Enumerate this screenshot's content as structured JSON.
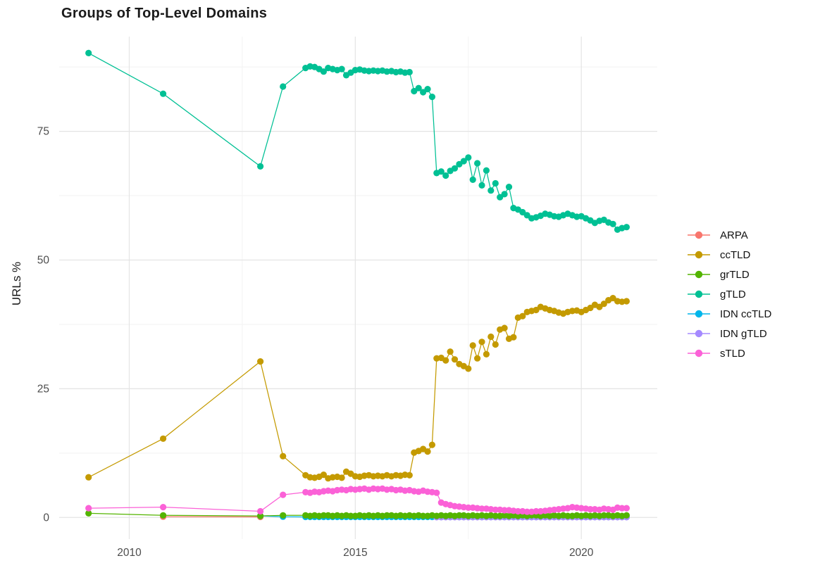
{
  "title": "Groups of Top-Level Domains",
  "y_axis": {
    "label": "URLs %"
  },
  "legend": {
    "items": [
      {
        "label": "ARPA",
        "color": "#F8766D"
      },
      {
        "label": "ccTLD",
        "color": "#C49A00"
      },
      {
        "label": "grTLD",
        "color": "#53B400"
      },
      {
        "label": "gTLD",
        "color": "#00C094"
      },
      {
        "label": "IDN ccTLD",
        "color": "#00B6EB"
      },
      {
        "label": "IDN gTLD",
        "color": "#A58AFF"
      },
      {
        "label": "sTLD",
        "color": "#FB61D7"
      }
    ]
  },
  "colors": {
    "background": "#ffffff",
    "grid_major": "#e4e4e4",
    "grid_minor": "#f2f2f2",
    "axis_text": "#4d4d4d",
    "text": "#1a1a1a"
  },
  "chart_data": {
    "type": "line",
    "title": "Groups of Top-Level Domains",
    "xlabel": "",
    "ylabel": "URLs %",
    "xlim": [
      2008.45,
      2021.68
    ],
    "ylim": [
      -4.2,
      93.4
    ],
    "x_ticks": [
      2010,
      2015,
      2020
    ],
    "x_tick_labels": [
      "2010",
      "2015",
      "2020"
    ],
    "x_minor": [
      2012.5,
      2017.5
    ],
    "y_ticks": [
      0,
      25,
      50,
      75
    ],
    "y_tick_labels": [
      "0",
      "25",
      "50",
      "75"
    ],
    "y_minor": [
      12.5,
      37.5,
      62.5,
      87.5
    ],
    "grid": true,
    "legend_position": "right",
    "series": [
      {
        "name": "ARPA",
        "color": "#F8766D",
        "points": [
          [
            2010.75,
            0.15
          ],
          [
            2012.9,
            0.1
          ]
        ]
      },
      {
        "name": "IDN ccTLD",
        "color": "#00B6EB",
        "points": [
          [
            2012.9,
            0.3
          ],
          [
            2013.4,
            0.15
          ]
        ],
        "run": {
          "x0": 2013.9,
          "dx": 0.1,
          "values": [
            0.1,
            0.1,
            0.1,
            0.1,
            0.1,
            0.1,
            0.1,
            0.1,
            0.1,
            0.1,
            0.1,
            0.1,
            0.1,
            0.1,
            0.1,
            0.1,
            0.1,
            0.1,
            0.1,
            0.1,
            0.1,
            0.1,
            0.1,
            0.1,
            0.1,
            0.1,
            0.1,
            0.1,
            0.1,
            0.1,
            0.1,
            0.1,
            0.1,
            0.1,
            0.1,
            0.1,
            0.1,
            0.1,
            0.1,
            0.1,
            0.1,
            0.1,
            0.1,
            0.1,
            0.1,
            0.1,
            0.1,
            0.1,
            0.1,
            0.1,
            0.1,
            0.1,
            0.1,
            0.1,
            0.1,
            0.1,
            0.1,
            0.1,
            0.1,
            0.1,
            0.1,
            0.1,
            0.1,
            0.1,
            0.1,
            0.1,
            0.1,
            0.1,
            0.1,
            0.1,
            0.1,
            0.1
          ]
        }
      },
      {
        "name": "IDN gTLD",
        "color": "#A58AFF",
        "points": [],
        "run": {
          "x0": 2016.8,
          "dx": 0.1,
          "values": [
            0.05,
            0.05,
            0.05,
            0.05,
            0.05,
            0.05,
            0.05,
            0.05,
            0.05,
            0.05,
            0.05,
            0.05,
            0.05,
            0.05,
            0.05,
            0.05,
            0.05,
            0.05,
            0.05,
            0.05,
            0.05,
            0.05,
            0.05,
            0.05,
            0.05,
            0.05,
            0.05,
            0.05,
            0.05,
            0.05,
            0.05,
            0.05,
            0.05,
            0.05,
            0.05,
            0.05,
            0.05,
            0.05,
            0.05,
            0.05,
            0.05,
            0.05,
            0.05
          ]
        }
      },
      {
        "name": "ccTLD",
        "color": "#C49A00",
        "points": [
          [
            2009.1,
            7.8
          ],
          [
            2010.75,
            15.3
          ],
          [
            2012.9,
            30.3
          ],
          [
            2013.4,
            11.9
          ]
        ],
        "run": {
          "x0": 2013.9,
          "dx": 0.1,
          "values": [
            8.2,
            7.8,
            7.7,
            7.9,
            8.3,
            7.6,
            7.8,
            7.9,
            7.7,
            8.9,
            8.5,
            8.0,
            7.9,
            8.1,
            8.2,
            8.0,
            8.1,
            8.0,
            8.2,
            8.0,
            8.2,
            8.1,
            8.3,
            8.2,
            12.6,
            12.9,
            13.3,
            12.8,
            14.1,
            30.9,
            31.0,
            30.5,
            32.2,
            30.7,
            29.8,
            29.4,
            28.9,
            33.4,
            30.9,
            34.1,
            31.7,
            35.1,
            33.6,
            36.5,
            36.8,
            34.7,
            35.0,
            38.8,
            39.1,
            39.9,
            40.1,
            40.3,
            40.9,
            40.6,
            40.3,
            40.1,
            39.8,
            39.6,
            39.9,
            40.1,
            40.2,
            39.9,
            40.3,
            40.7,
            41.3,
            40.9,
            41.5,
            42.2,
            42.6,
            42.0,
            41.9,
            42.0
          ]
        }
      },
      {
        "name": "gTLD",
        "color": "#00C094",
        "points": [
          [
            2009.1,
            90.2
          ],
          [
            2010.75,
            82.3
          ],
          [
            2012.9,
            68.2
          ],
          [
            2013.4,
            83.7
          ]
        ],
        "run": {
          "x0": 2013.9,
          "dx": 0.1,
          "values": [
            87.3,
            87.6,
            87.5,
            87.1,
            86.6,
            87.3,
            87.1,
            86.9,
            87.1,
            85.9,
            86.4,
            86.9,
            87.0,
            86.8,
            86.7,
            86.8,
            86.7,
            86.8,
            86.6,
            86.7,
            86.5,
            86.6,
            86.4,
            86.5,
            82.8,
            83.4,
            82.6,
            83.2,
            81.7,
            66.9,
            67.2,
            66.4,
            67.3,
            67.8,
            68.6,
            69.2,
            69.9,
            65.6,
            68.8,
            64.5,
            67.4,
            63.5,
            64.9,
            62.2,
            62.8,
            64.2,
            60.1,
            59.8,
            59.3,
            58.7,
            58.1,
            58.3,
            58.6,
            59.0,
            58.8,
            58.5,
            58.4,
            58.7,
            59.0,
            58.7,
            58.4,
            58.5,
            58.1,
            57.7,
            57.2,
            57.6,
            57.8,
            57.3,
            57.0,
            55.9,
            56.2,
            56.4
          ]
        }
      },
      {
        "name": "grTLD",
        "color": "#53B400",
        "points": [
          [
            2009.1,
            0.8
          ],
          [
            2010.75,
            0.4
          ],
          [
            2012.9,
            0.3
          ],
          [
            2013.4,
            0.4
          ]
        ],
        "run": {
          "x0": 2013.9,
          "dx": 0.1,
          "values": [
            0.4,
            0.3,
            0.4,
            0.3,
            0.4,
            0.4,
            0.3,
            0.4,
            0.3,
            0.4,
            0.3,
            0.3,
            0.4,
            0.3,
            0.4,
            0.3,
            0.4,
            0.3,
            0.4,
            0.4,
            0.3,
            0.4,
            0.3,
            0.4,
            0.3,
            0.4,
            0.3,
            0.3,
            0.4,
            0.3,
            0.4,
            0.3,
            0.4,
            0.3,
            0.4,
            0.4,
            0.3,
            0.4,
            0.3,
            0.4,
            0.3,
            0.4,
            0.3,
            0.3,
            0.4,
            0.3,
            0.4,
            0.3,
            0.4,
            0.3,
            0.4,
            0.4,
            0.3,
            0.4,
            0.3,
            0.4,
            0.3,
            0.4,
            0.3,
            0.3,
            0.4,
            0.3,
            0.4,
            0.3,
            0.4,
            0.3,
            0.4,
            0.4,
            0.3,
            0.4,
            0.3,
            0.4
          ]
        }
      },
      {
        "name": "sTLD",
        "color": "#FB61D7",
        "points": [
          [
            2009.1,
            1.8
          ],
          [
            2010.75,
            2.0
          ],
          [
            2012.9,
            1.2
          ],
          [
            2013.4,
            4.4
          ]
        ],
        "run": {
          "x0": 2013.9,
          "dx": 0.1,
          "values": [
            4.9,
            4.8,
            5.0,
            4.9,
            5.1,
            5.2,
            5.1,
            5.3,
            5.4,
            5.3,
            5.5,
            5.4,
            5.5,
            5.6,
            5.4,
            5.6,
            5.5,
            5.6,
            5.4,
            5.5,
            5.3,
            5.4,
            5.2,
            5.3,
            5.1,
            5.0,
            5.2,
            5.0,
            4.9,
            4.8,
            2.9,
            2.6,
            2.4,
            2.2,
            2.1,
            2.0,
            1.9,
            1.9,
            1.8,
            1.7,
            1.7,
            1.6,
            1.5,
            1.5,
            1.4,
            1.4,
            1.3,
            1.2,
            1.2,
            1.1,
            1.1,
            1.2,
            1.2,
            1.3,
            1.4,
            1.5,
            1.6,
            1.7,
            1.8,
            2.0,
            1.9,
            1.8,
            1.7,
            1.6,
            1.6,
            1.5,
            1.7,
            1.6,
            1.5,
            1.9,
            1.8,
            1.8
          ]
        }
      }
    ]
  }
}
